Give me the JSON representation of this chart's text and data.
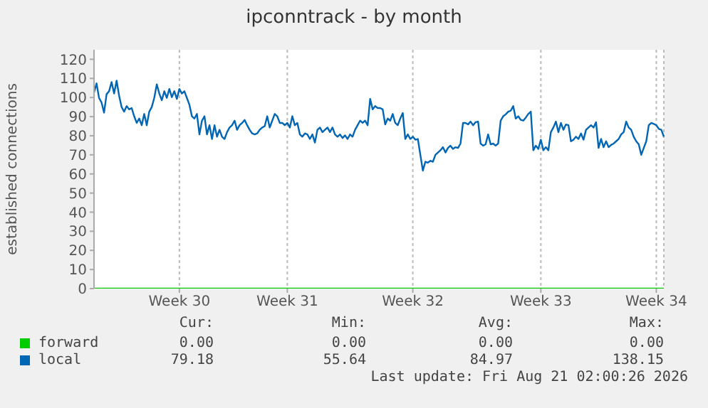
{
  "chart_data": {
    "type": "line",
    "title": "ipconntrack - by month",
    "ylabel": "established connections",
    "categories": [
      null,
      null,
      null,
      null,
      null,
      null,
      null,
      null,
      null,
      null,
      null,
      null,
      null,
      null,
      null,
      null,
      null,
      null,
      null,
      null,
      null,
      null,
      null,
      null,
      null,
      null,
      null,
      null,
      null,
      null,
      null,
      null,
      null,
      null,
      "Week 30",
      null,
      null,
      null,
      null,
      null,
      null,
      null,
      null,
      null,
      null,
      null,
      null,
      null,
      null,
      null,
      null,
      null,
      null,
      null,
      null,
      null,
      null,
      null,
      null,
      null,
      null,
      null,
      null,
      null,
      null,
      null,
      null,
      null,
      null,
      null,
      null,
      null,
      null,
      null,
      null,
      null,
      null,
      "Week 31",
      null,
      null,
      null,
      null,
      null,
      null,
      null,
      null,
      null,
      null,
      null,
      null,
      null,
      null,
      null,
      null,
      null,
      null,
      null,
      null,
      null,
      null,
      null,
      null,
      null,
      null,
      null,
      null,
      null,
      null,
      null,
      null,
      null,
      null,
      null,
      null,
      null,
      null,
      null,
      null,
      null,
      null,
      null,
      null,
      null,
      null,
      null,
      null,
      null,
      "Week 32",
      null,
      null,
      null,
      null,
      null,
      null,
      null,
      null,
      null,
      null,
      null,
      null,
      null,
      null,
      null,
      null,
      null,
      null,
      null,
      null,
      null,
      null,
      null,
      null,
      null,
      null,
      null,
      null,
      null,
      null,
      null,
      null,
      null,
      null,
      null,
      null,
      null,
      null,
      null,
      null,
      null,
      null,
      null,
      null,
      null,
      null,
      null,
      null,
      null,
      null,
      "Week 33",
      null,
      null,
      null,
      null,
      null,
      null,
      null,
      null,
      null,
      null,
      null,
      null,
      null,
      null,
      null,
      null,
      null,
      null,
      null,
      null,
      null,
      null,
      null,
      null,
      null,
      null,
      null,
      null,
      null,
      null,
      null,
      null,
      null,
      null,
      null,
      null,
      null,
      null,
      null,
      null,
      null,
      null,
      null,
      null,
      null,
      "Week 34",
      null,
      null,
      null
    ],
    "ylim": [
      0,
      125
    ],
    "yticks": [
      0,
      10,
      20,
      30,
      40,
      50,
      60,
      70,
      80,
      90,
      100,
      110,
      120
    ],
    "grid": true,
    "legend": "bottom",
    "marker": "none",
    "line_style": "solid",
    "series": [
      {
        "name": "forward",
        "color": "#00cc00",
        "values": [
          0,
          0,
          0,
          0,
          0,
          0,
          0,
          0,
          0,
          0,
          0,
          0,
          0,
          0,
          0,
          0,
          0,
          0,
          0,
          0,
          0,
          0,
          0,
          0,
          0,
          0,
          0,
          0,
          0,
          0,
          0,
          0,
          0,
          0,
          0,
          0,
          0,
          0,
          0,
          0,
          0,
          0,
          0,
          0,
          0,
          0,
          0,
          0,
          0,
          0,
          0,
          0,
          0,
          0,
          0,
          0,
          0,
          0,
          0,
          0,
          0,
          0,
          0,
          0,
          0,
          0,
          0,
          0,
          0,
          0,
          0,
          0,
          0,
          0,
          0,
          0,
          0,
          0,
          0,
          0,
          0,
          0,
          0,
          0,
          0,
          0,
          0,
          0,
          0,
          0,
          0,
          0,
          0,
          0,
          0,
          0,
          0,
          0,
          0,
          0,
          0,
          0,
          0,
          0,
          0,
          0,
          0,
          0,
          0,
          0,
          0,
          0,
          0,
          0,
          0,
          0,
          0,
          0,
          0,
          0,
          0,
          0,
          0,
          0,
          0,
          0,
          0,
          0,
          0,
          0,
          0,
          0,
          0,
          0,
          0,
          0,
          0,
          0,
          0,
          0,
          0,
          0,
          0,
          0,
          0,
          0,
          0,
          0,
          0,
          0,
          0,
          0,
          0,
          0,
          0,
          0,
          0,
          0,
          0,
          0,
          0,
          0,
          0,
          0,
          0,
          0,
          0,
          0,
          0,
          0,
          0,
          0,
          0,
          0,
          0,
          0,
          0,
          0,
          0,
          0,
          0,
          0,
          0,
          0,
          0,
          0,
          0,
          0,
          0,
          0,
          0,
          0,
          0,
          0,
          0,
          0,
          0,
          0,
          0,
          0,
          0,
          0,
          0,
          0,
          0,
          0,
          0,
          0,
          0,
          0,
          0,
          0,
          0,
          0,
          0,
          0,
          0,
          0,
          0,
          0,
          0,
          0,
          0,
          0,
          0,
          0,
          0,
          0
        ]
      },
      {
        "name": "local",
        "color": "#0066b3",
        "values": [
          102.6,
          107.4,
          99.8,
          97.4,
          92.1,
          101.7,
          103.3,
          108.1,
          102.1,
          108.8,
          100.9,
          95.0,
          92.6,
          95.5,
          93.8,
          94.5,
          90.2,
          86.7,
          89.0,
          85.5,
          91.4,
          85.5,
          92.6,
          95.0,
          99.8,
          106.9,
          102.1,
          98.6,
          103.3,
          99.8,
          104.5,
          100.2,
          103.3,
          99.3,
          104.5,
          102.1,
          103.3,
          99.8,
          96.2,
          90.2,
          89.0,
          91.4,
          80.7,
          87.9,
          90.2,
          80.7,
          85.5,
          78.3,
          85.5,
          79.5,
          83.1,
          79.5,
          78.3,
          81.9,
          84.3,
          85.5,
          87.9,
          83.1,
          85.5,
          86.7,
          88.3,
          85.5,
          83.1,
          81.2,
          80.7,
          81.2,
          83.1,
          84.3,
          85.0,
          90.2,
          84.3,
          87.9,
          91.4,
          90.2,
          86.7,
          86.7,
          85.5,
          86.7,
          84.3,
          90.2,
          85.5,
          86.7,
          80.7,
          79.5,
          81.2,
          80.7,
          78.3,
          80.7,
          76.4,
          83.1,
          84.3,
          81.9,
          83.1,
          84.3,
          81.9,
          84.3,
          80.7,
          79.5,
          80.7,
          78.8,
          80.2,
          78.3,
          80.7,
          79.5,
          83.1,
          85.5,
          87.9,
          86.7,
          87.9,
          85.5,
          99.3,
          93.8,
          95.5,
          94.5,
          94.5,
          93.8,
          85.9,
          89.0,
          87.9,
          91.4,
          86.7,
          85.5,
          89.0,
          91.9,
          78.3,
          80.7,
          78.3,
          79.5,
          77.9,
          78.3,
          70.0,
          61.7,
          66.4,
          65.9,
          66.9,
          66.4,
          70.0,
          71.2,
          72.4,
          74.0,
          71.2,
          73.6,
          74.8,
          73.1,
          74.0,
          73.6,
          75.9,
          86.7,
          86.7,
          85.9,
          87.4,
          85.5,
          87.1,
          87.4,
          75.9,
          74.8,
          75.5,
          80.7,
          75.5,
          75.9,
          74.8,
          75.9,
          87.9,
          90.2,
          91.2,
          92.6,
          93.1,
          95.5,
          89.0,
          90.2,
          88.3,
          87.9,
          89.5,
          91.4,
          92.6,
          72.4,
          74.8,
          73.1,
          77.9,
          72.4,
          74.0,
          72.4,
          81.9,
          84.3,
          87.4,
          81.9,
          86.7,
          83.1,
          85.9,
          85.5,
          77.1,
          77.9,
          79.5,
          78.3,
          81.2,
          77.9,
          83.1,
          84.3,
          85.5,
          84.3,
          87.1,
          73.6,
          78.3,
          74.0,
          77.1,
          74.0,
          75.2,
          75.9,
          77.1,
          78.3,
          80.7,
          81.9,
          87.4,
          84.3,
          83.1,
          79.5,
          77.1,
          75.5,
          70.0,
          73.6,
          77.1,
          85.5,
          86.7,
          86.2,
          85.5,
          83.6,
          83.1,
          79.5
        ]
      }
    ],
    "annotations": [
      "Cur:",
      "Min:",
      "Avg:",
      "Max:",
      "0.00",
      "0.00",
      "0.00",
      "0.00",
      "79.18",
      "55.64",
      "84.97",
      "138.15",
      "Last update: Fri Aug 21 02:00:26 2026"
    ]
  }
}
